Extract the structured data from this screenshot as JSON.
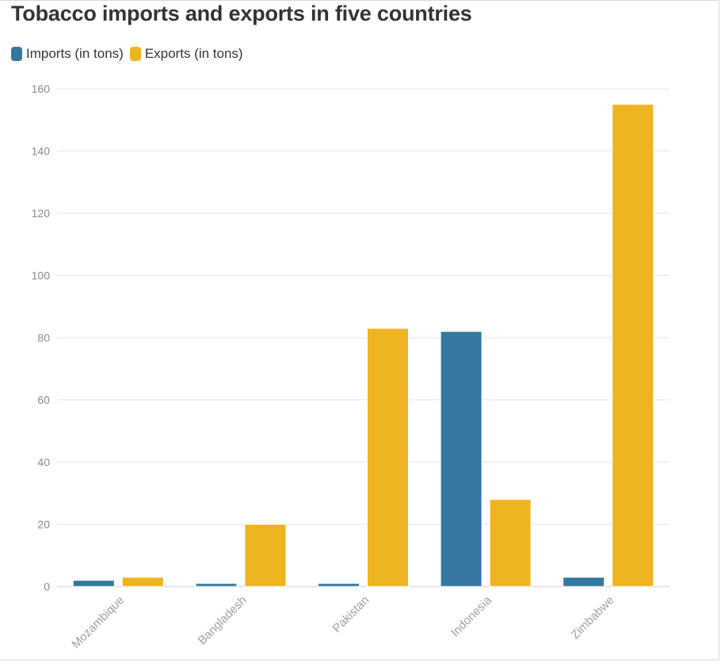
{
  "title": "Tobacco imports and exports in five countries",
  "colors": {
    "imports": "#35789f",
    "exports": "#efb421",
    "grid": "#e6e6e6",
    "axis": "#cccccc"
  },
  "chart_data": {
    "type": "bar",
    "title": "Tobacco imports and exports in five countries",
    "categories": [
      "Mozambique",
      "Bangladesh",
      "Pakistan",
      "Indonesia",
      "Zimbabwe"
    ],
    "series": [
      {
        "name": "Imports (in tons)",
        "values": [
          2,
          1,
          1,
          82,
          3
        ]
      },
      {
        "name": "Exports (in tons)",
        "values": [
          3,
          20,
          83,
          28,
          155
        ]
      }
    ],
    "ylim": [
      0,
      160
    ],
    "yticks": [
      0,
      20,
      40,
      60,
      80,
      100,
      120,
      140,
      160
    ],
    "grid": true,
    "legend": "top-left"
  }
}
